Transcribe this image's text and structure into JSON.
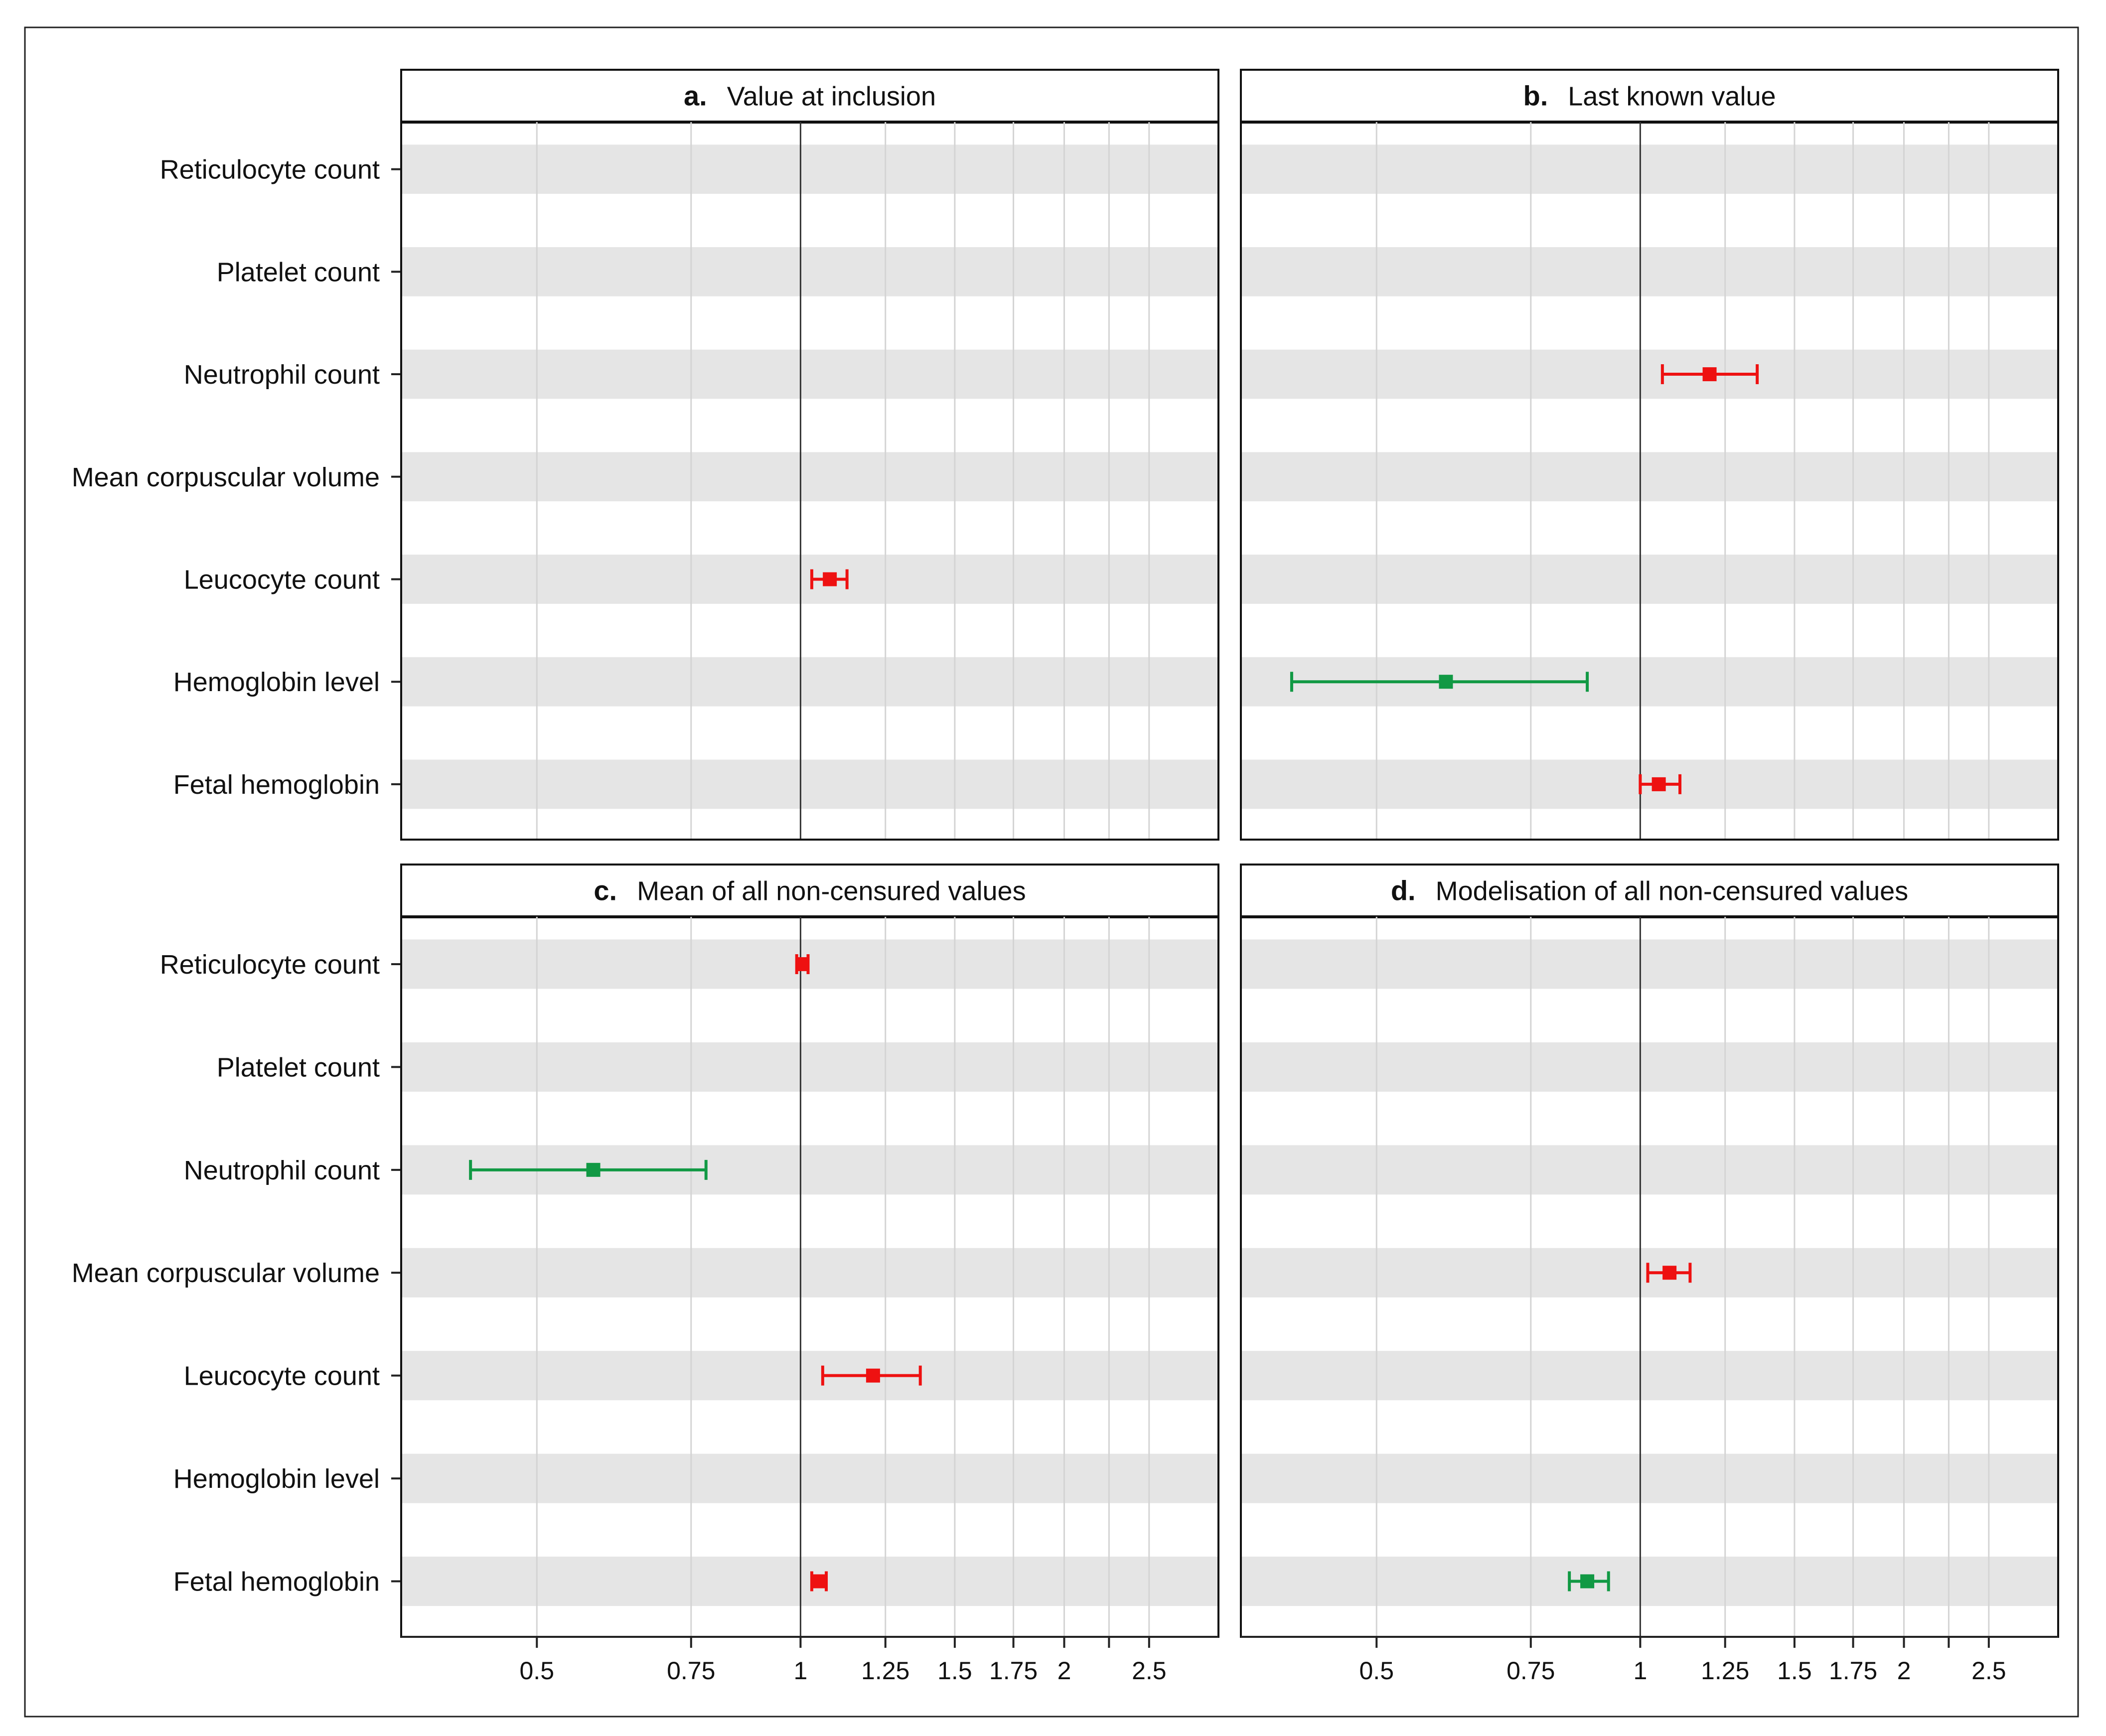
{
  "chart_data": {
    "type": "forest",
    "x_scale": "log",
    "x_range": [
      0.35,
      3.0
    ],
    "reference_line": 1,
    "x_ticks": [
      {
        "value": 0.5,
        "label": "0.5"
      },
      {
        "value": 0.75,
        "label": "0.75"
      },
      {
        "value": 1,
        "label": "1"
      },
      {
        "value": 1.25,
        "label": "1.25"
      },
      {
        "value": 1.5,
        "label": "1.5"
      },
      {
        "value": 1.75,
        "label": "1.75"
      },
      {
        "value": 2,
        "label": "2"
      },
      {
        "value": 2.5,
        "label": "2.5"
      }
    ],
    "minor_gridlines": [
      2.25
    ],
    "categories": [
      "Reticulocyte count",
      "Platelet count",
      "Neutrophil count",
      "Mean corpuscular volume",
      "Leucocyte count",
      "Hemoglobin level",
      "Fetal hemoglobin"
    ],
    "colors": {
      "increase": "#ee1111",
      "decrease": "#119944"
    },
    "panels": [
      {
        "id": "a",
        "letter": "a.",
        "title": "Value at inclusion",
        "points": [
          {
            "category": "Leucocyte count",
            "estimate": 1.08,
            "low": 1.03,
            "high": 1.13,
            "direction": "increase"
          }
        ]
      },
      {
        "id": "b",
        "letter": "b.",
        "title": "Last known value",
        "points": [
          {
            "category": "Neutrophil count",
            "estimate": 1.2,
            "low": 1.06,
            "high": 1.36,
            "direction": "increase"
          },
          {
            "category": "Hemoglobin level",
            "estimate": 0.6,
            "low": 0.4,
            "high": 0.87,
            "direction": "decrease"
          },
          {
            "category": "Fetal hemoglobin",
            "estimate": 1.05,
            "low": 1.0,
            "high": 1.11,
            "direction": "increase"
          }
        ]
      },
      {
        "id": "c",
        "letter": "c.",
        "title": "Mean of all non-censured values",
        "points": [
          {
            "category": "Reticulocyte count",
            "estimate": 1.005,
            "low": 0.99,
            "high": 1.02,
            "direction": "increase"
          },
          {
            "category": "Neutrophil count",
            "estimate": 0.58,
            "low": 0.42,
            "high": 0.78,
            "direction": "decrease"
          },
          {
            "category": "Leucocyte count",
            "estimate": 1.21,
            "low": 1.06,
            "high": 1.37,
            "direction": "increase"
          },
          {
            "category": "Fetal hemoglobin",
            "estimate": 1.05,
            "low": 1.03,
            "high": 1.07,
            "direction": "increase"
          }
        ]
      },
      {
        "id": "d",
        "letter": "d.",
        "title": "Modelisation of all non-censured values",
        "points": [
          {
            "category": "Mean corpuscular volume",
            "estimate": 1.08,
            "low": 1.02,
            "high": 1.14,
            "direction": "increase"
          },
          {
            "category": "Fetal hemoglobin",
            "estimate": 0.87,
            "low": 0.83,
            "high": 0.92,
            "direction": "decrease"
          }
        ]
      }
    ]
  }
}
